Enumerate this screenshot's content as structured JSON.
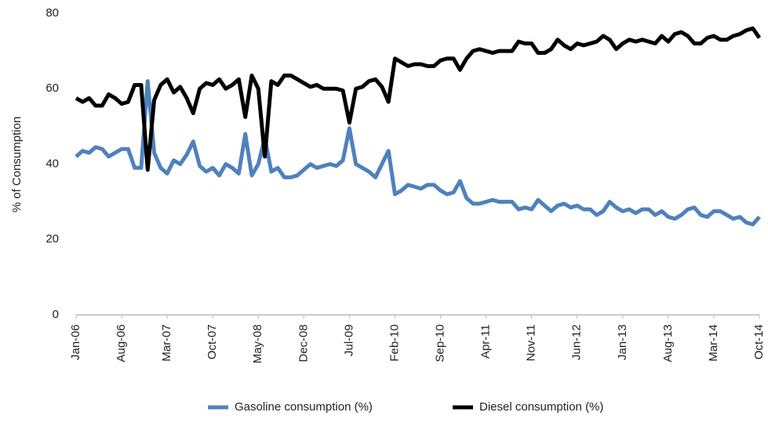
{
  "chart_data": {
    "type": "line",
    "ylabel": "% of Consumption",
    "categories": [
      "Jan-06",
      null,
      null,
      null,
      null,
      null,
      null,
      "Aug-06",
      null,
      null,
      null,
      null,
      null,
      null,
      "Mar-07",
      null,
      null,
      null,
      null,
      null,
      null,
      "Oct-07",
      null,
      null,
      null,
      null,
      null,
      null,
      "May-08",
      null,
      null,
      null,
      null,
      null,
      null,
      "Dec-08",
      null,
      null,
      null,
      null,
      null,
      null,
      "Jul-09",
      null,
      null,
      null,
      null,
      null,
      null,
      "Feb-10",
      null,
      null,
      null,
      null,
      null,
      null,
      "Sep-10",
      null,
      null,
      null,
      null,
      null,
      null,
      "Apr-11",
      null,
      null,
      null,
      null,
      null,
      null,
      "Nov-11",
      null,
      null,
      null,
      null,
      null,
      null,
      "Jun-12",
      null,
      null,
      null,
      null,
      null,
      null,
      "Jan-13",
      null,
      null,
      null,
      null,
      null,
      null,
      "Aug-13",
      null,
      null,
      null,
      null,
      null,
      null,
      "Mar-14",
      null,
      null,
      null,
      null,
      null,
      null,
      "Oct-14"
    ],
    "series": [
      {
        "name": "Gasoline consumption (%)",
        "color": "#4f81bd",
        "values": [
          42,
          43.5,
          43,
          44.5,
          44,
          42,
          43,
          44,
          44,
          39,
          39,
          62,
          43,
          39,
          37.5,
          41,
          40,
          42.5,
          46,
          39.5,
          38,
          39,
          37,
          40,
          39,
          37.5,
          48,
          37,
          40,
          47,
          38,
          39,
          36.5,
          36.5,
          37,
          38.5,
          40,
          39,
          39.5,
          40,
          39.5,
          41,
          49.5,
          40,
          39,
          38,
          36.5,
          40,
          43.5,
          32,
          33,
          34.5,
          34,
          33.5,
          34.5,
          34.5,
          33,
          32,
          32.5,
          35.5,
          31,
          29.5,
          29.5,
          30,
          30.5,
          30,
          30,
          30,
          28,
          28.5,
          28,
          30.5,
          29,
          27.5,
          29,
          29.5,
          28.5,
          29,
          28,
          28,
          26.5,
          27.5,
          30,
          28.5,
          27.5,
          28,
          27,
          28,
          28,
          26.5,
          27.5,
          26,
          25.5,
          26.5,
          28,
          28.5,
          26.5,
          26,
          27.5,
          27.5,
          26.5,
          25.5,
          26,
          24.5,
          24,
          26
        ]
      },
      {
        "name": "Diesel consumption (%)",
        "color": "#000000",
        "values": [
          57.5,
          56.5,
          57.5,
          55.5,
          55.5,
          58.5,
          57.5,
          56,
          56.5,
          61,
          61,
          38.5,
          57,
          61,
          62.5,
          59,
          60.5,
          57.5,
          53.5,
          60,
          61.5,
          61,
          62.5,
          60,
          61,
          62.5,
          52.5,
          63.5,
          60,
          42,
          62,
          61,
          63.5,
          63.5,
          62.5,
          61.5,
          60.5,
          61,
          60,
          60,
          60,
          59.5,
          51,
          60,
          60.5,
          62,
          62.5,
          60.5,
          56.5,
          68,
          67,
          66,
          66.5,
          66.5,
          66,
          66,
          67.5,
          68,
          68,
          65,
          68,
          70,
          70.5,
          70,
          69.5,
          70,
          70,
          70,
          72.5,
          72,
          72,
          69.5,
          69.5,
          70.5,
          73,
          71.5,
          70.5,
          72,
          71.5,
          72,
          72.5,
          74,
          73,
          70.5,
          72,
          73,
          72.5,
          73,
          72.5,
          72,
          74,
          72.5,
          74.5,
          75,
          74,
          72,
          72,
          73.5,
          74,
          73,
          73,
          74,
          74.5,
          75.5,
          76,
          73.5
        ]
      }
    ],
    "ylim": [
      0,
      80
    ],
    "yticks": [
      0,
      20,
      40,
      60,
      80
    ],
    "grid": false
  }
}
